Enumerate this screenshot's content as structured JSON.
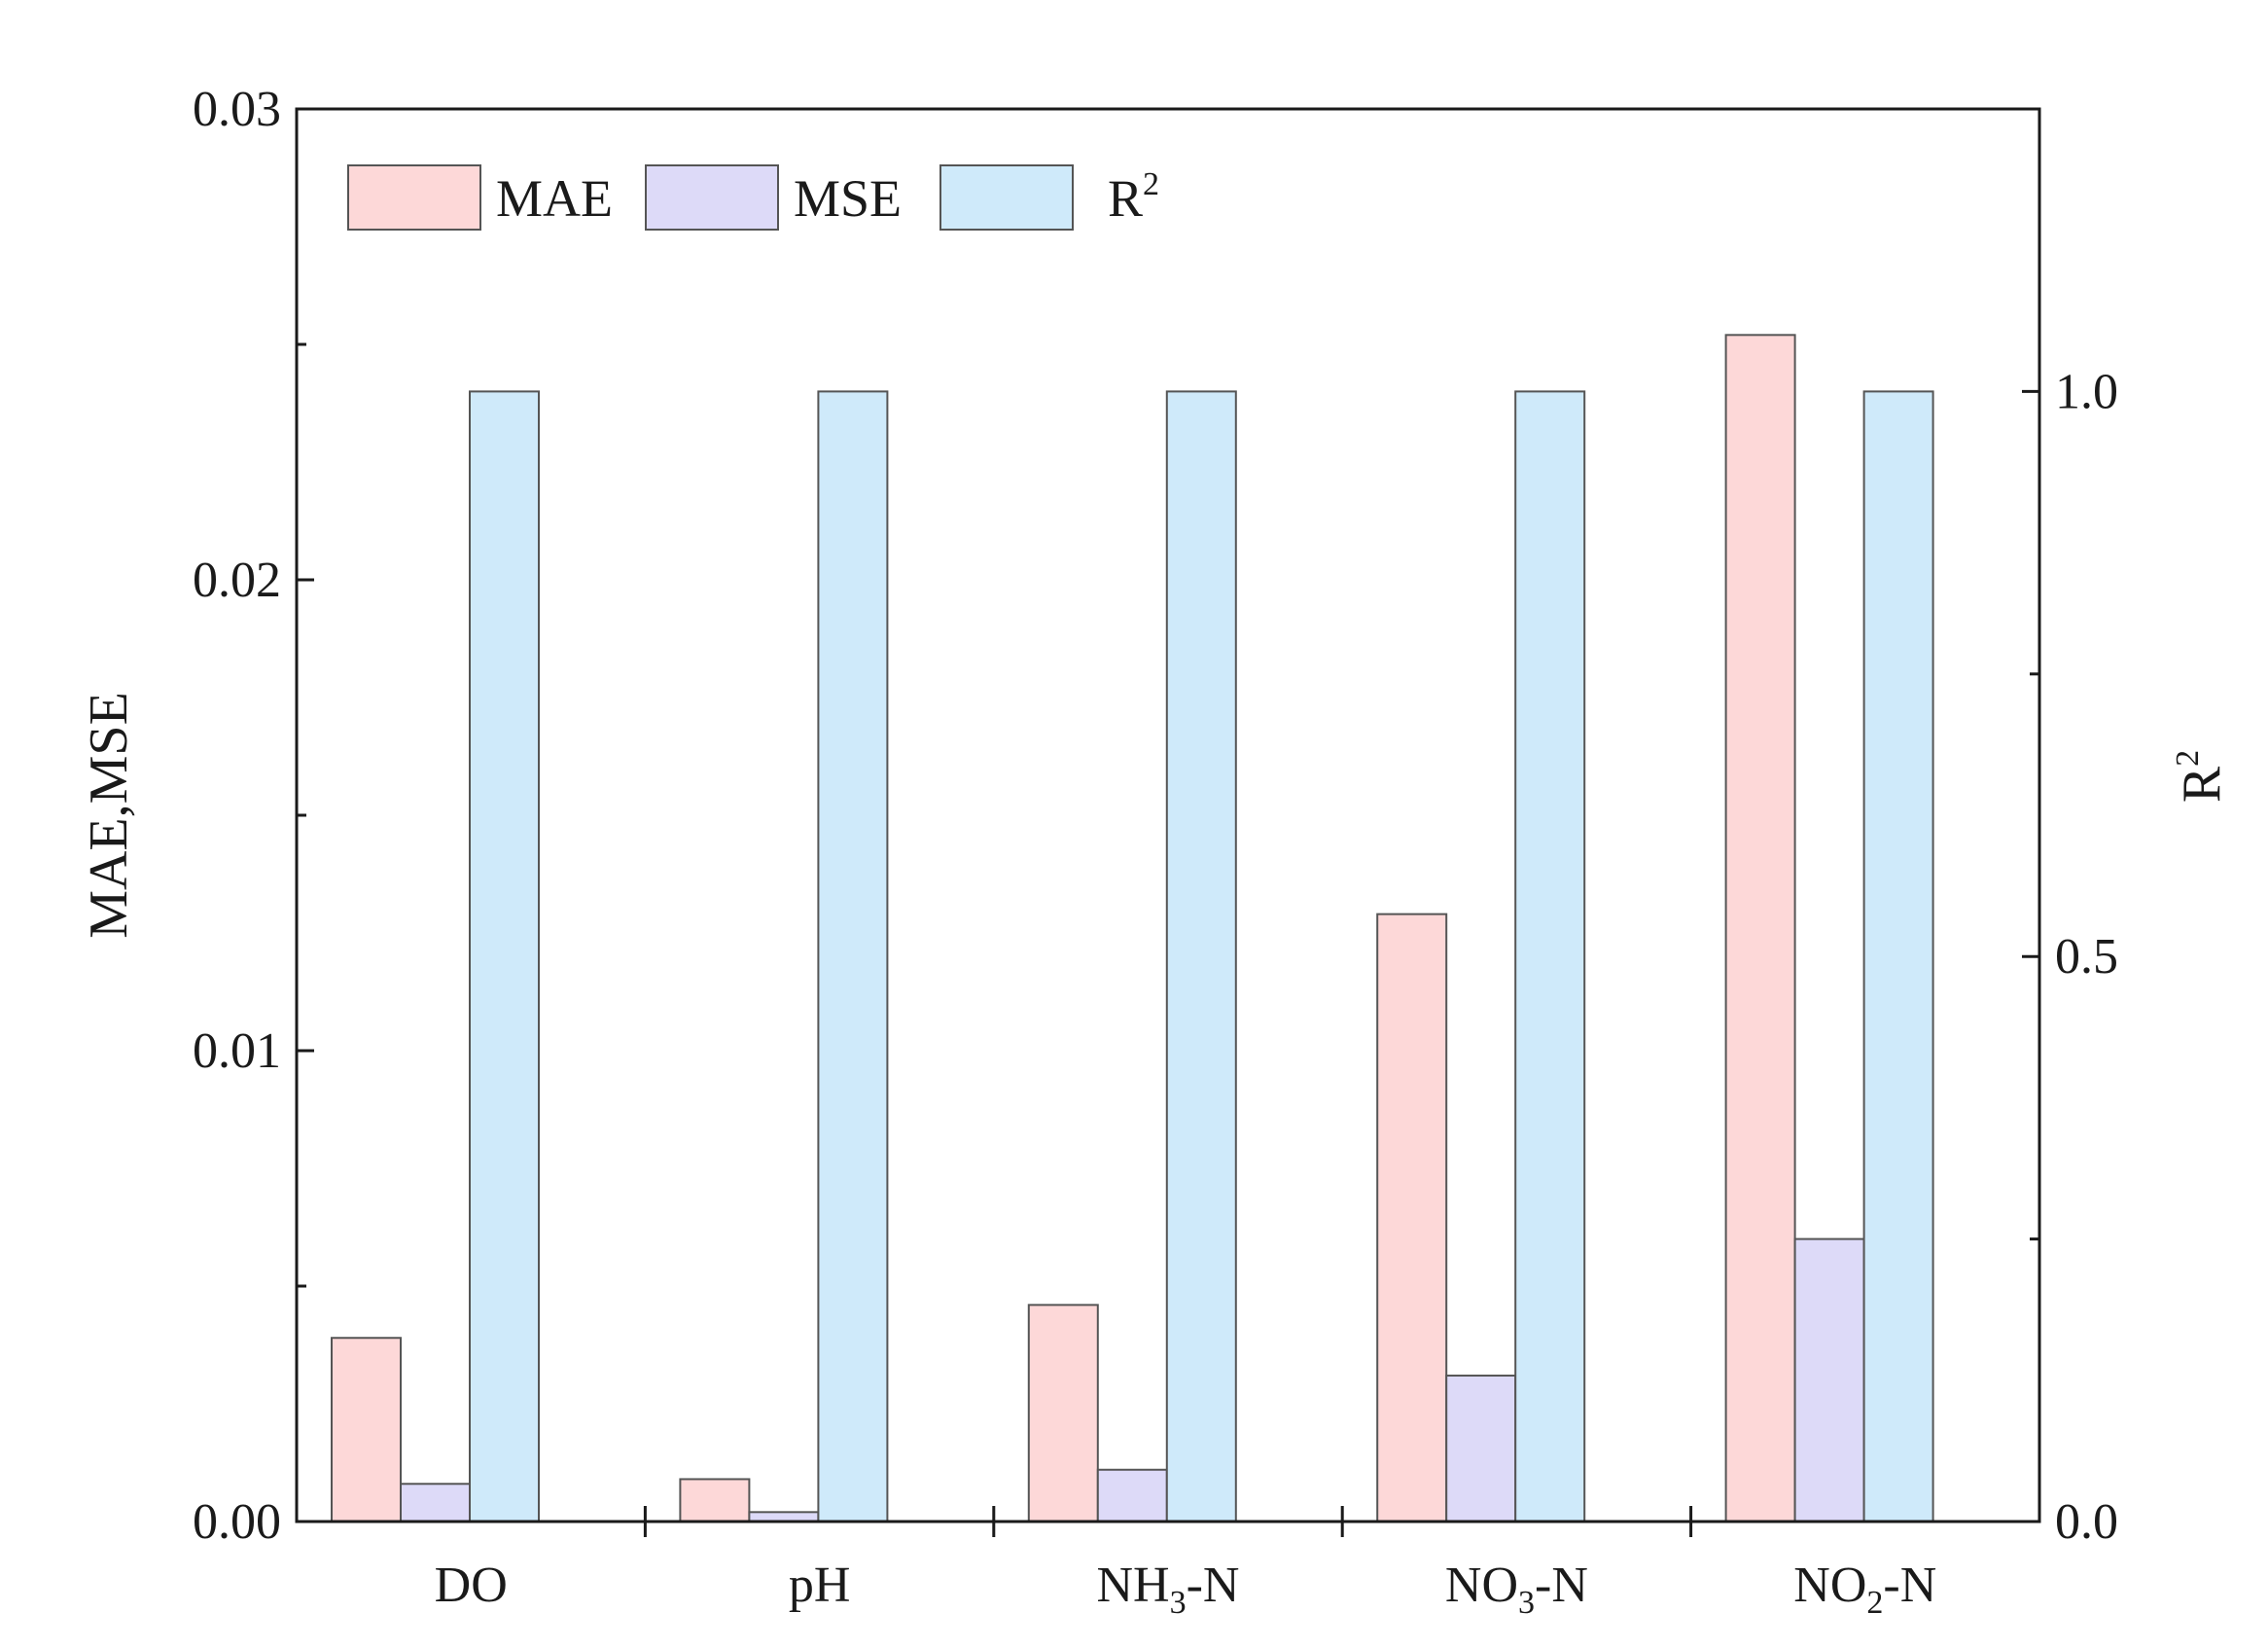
{
  "chart_data": {
    "type": "bar",
    "categories": [
      {
        "label": "DO"
      },
      {
        "label": "pH"
      },
      {
        "label": "NH",
        "sub": "3",
        "suffix": "-N"
      },
      {
        "label": "NO",
        "sub": "3",
        "suffix": "-N"
      },
      {
        "label": "NO",
        "sub": "2",
        "suffix": "-N"
      }
    ],
    "series": [
      {
        "name": "MAE",
        "axis": "left",
        "color": "#fdd8d8",
        "values": [
          0.0039,
          0.0009,
          0.0046,
          0.0129,
          0.0252
        ]
      },
      {
        "name": "MSE",
        "axis": "left",
        "color": "#dddaf8",
        "values": [
          0.0008,
          0.0002,
          0.0011,
          0.0031,
          0.006
        ]
      },
      {
        "name": "R",
        "name_sup": "2",
        "axis": "right",
        "color": "#cfeafa",
        "values": [
          1.0,
          1.0,
          1.0,
          1.0,
          1.0
        ]
      }
    ],
    "left_axis": {
      "label": "MAE,MSE",
      "ylim": [
        0,
        0.03
      ],
      "ticks": [
        "0.00",
        "0.01",
        "0.02",
        "0.03"
      ],
      "tick_values": [
        0,
        0.01,
        0.02,
        0.03
      ],
      "minor_step": 0.005
    },
    "right_axis": {
      "label": "R",
      "label_sup": "2",
      "ylim": [
        0,
        1.25
      ],
      "ticks": [
        "0.0",
        "0.5",
        "1.0"
      ],
      "tick_values": [
        0,
        0.5,
        1.0
      ],
      "minor_step": 0.25
    },
    "legend_position": "top-left",
    "grid": false
  }
}
